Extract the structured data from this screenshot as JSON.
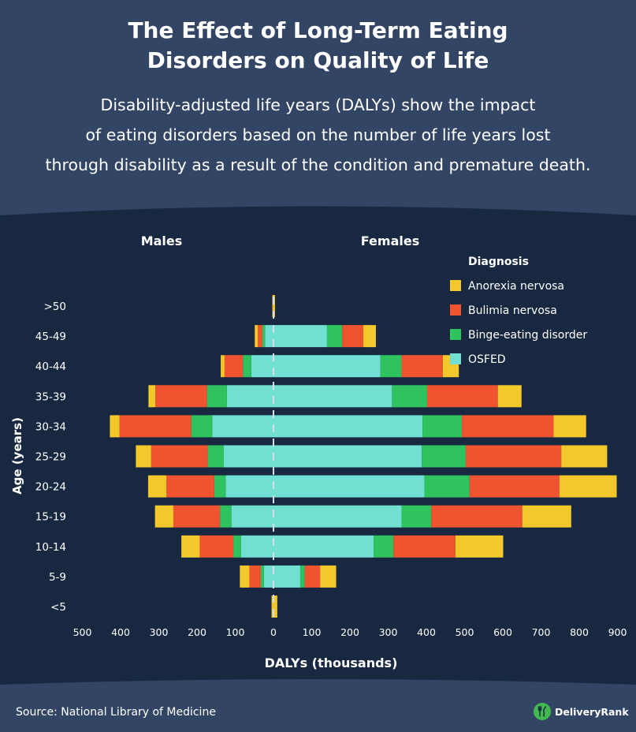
{
  "header": {
    "title_line1": "The Effect of Long-Term Eating",
    "title_line2": "Disorders on Quality of Life",
    "subtitle_line1": "Disability-adjusted life years (DALYs) show the impact",
    "subtitle_line2": "of eating disorders based on the number of life years lost",
    "subtitle_line3": "through disability as a result of the condition and premature death."
  },
  "footer": {
    "source": "Source: National Library of Medicine",
    "brand": "DeliveryRank"
  },
  "colors": {
    "background": "#182841",
    "header_background": "#334564",
    "anorexia": "#f3c82b",
    "bulimia": "#f0532f",
    "binge": "#2ec35f",
    "osfed": "#71e0d3",
    "brand_green": "#3fb950"
  },
  "chart_data": {
    "type": "bar",
    "orientation": "horizontal-population-pyramid",
    "side_labels": {
      "left": "Males",
      "right": "Females"
    },
    "xlabel": "DALYs (thousands)",
    "ylabel": "Age (years)",
    "legend_title": "Diagnosis",
    "legend_position": "top-right",
    "x_ticks_left": [
      "500",
      "400",
      "300",
      "200",
      "100"
    ],
    "x_ticks_right": [
      "0",
      "100",
      "200",
      "300",
      "400",
      "500",
      "600",
      "700",
      "800",
      "900"
    ],
    "xlim": [
      -500,
      900
    ],
    "categories": [
      ">50",
      "45-49",
      "40-44",
      "35-39",
      "30-34",
      "25-29",
      "20-24",
      "15-19",
      "10-14",
      "5-9",
      "<5"
    ],
    "stack_order_from_center": [
      "OSFED",
      "Binge-eating disorder",
      "Bulimia nervosa",
      "Anorexia nervosa"
    ],
    "series": [
      {
        "name": "Anorexia nervosa",
        "key": "anorexia",
        "males": [
          3,
          8,
          10,
          18,
          25,
          40,
          48,
          48,
          48,
          25,
          5
        ],
        "females": [
          4,
          33,
          42,
          62,
          85,
          120,
          150,
          128,
          125,
          42,
          10
        ]
      },
      {
        "name": "Bulimia nervosa",
        "key": "bulimia",
        "males": [
          0,
          12,
          48,
          135,
          188,
          148,
          125,
          122,
          88,
          30,
          0
        ],
        "females": [
          0,
          55,
          108,
          185,
          240,
          250,
          235,
          238,
          162,
          40,
          0
        ]
      },
      {
        "name": "Binge-eating disorder",
        "key": "binge",
        "males": [
          0,
          7,
          22,
          52,
          55,
          42,
          30,
          30,
          20,
          8,
          0
        ],
        "females": [
          0,
          40,
          55,
          92,
          103,
          115,
          118,
          78,
          52,
          12,
          0
        ]
      },
      {
        "name": "OSFED",
        "key": "osfed",
        "males": [
          0,
          22,
          58,
          122,
          160,
          130,
          125,
          110,
          85,
          25,
          0
        ],
        "females": [
          0,
          140,
          280,
          310,
          390,
          388,
          395,
          335,
          262,
          70,
          0
        ]
      }
    ]
  }
}
